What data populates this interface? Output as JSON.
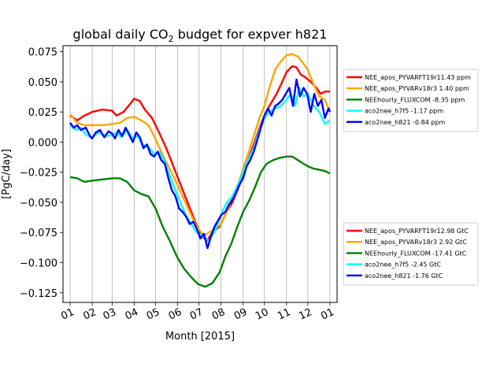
{
  "chart_data": {
    "type": "line",
    "title_prefix": "global daily CO",
    "title_sub": "2",
    "title_suffix": " budget for expver h821",
    "xlabel": "Month [2015]",
    "ylabel": "[PgC/day]",
    "ylim": [
      -0.133,
      0.08
    ],
    "xlim": [
      -10,
      375
    ],
    "grid": "vertical",
    "x_ticks": [
      {
        "day": 0,
        "label": "01"
      },
      {
        "day": 31,
        "label": "02"
      },
      {
        "day": 59,
        "label": "03"
      },
      {
        "day": 90,
        "label": "04"
      },
      {
        "day": 120,
        "label": "05"
      },
      {
        "day": 151,
        "label": "06"
      },
      {
        "day": 181,
        "label": "07"
      },
      {
        "day": 212,
        "label": "08"
      },
      {
        "day": 243,
        "label": "09"
      },
      {
        "day": 273,
        "label": "10"
      },
      {
        "day": 304,
        "label": "11"
      },
      {
        "day": 334,
        "label": "12"
      },
      {
        "day": 365,
        "label": "01"
      }
    ],
    "y_ticks": [
      {
        "value": 0.075,
        "label": "0.075"
      },
      {
        "value": 0.05,
        "label": "0.050"
      },
      {
        "value": 0.025,
        "label": "0.025"
      },
      {
        "value": 0.0,
        "label": "0.000"
      },
      {
        "value": -0.025,
        "label": "−0.025"
      },
      {
        "value": -0.05,
        "label": "−0.050"
      },
      {
        "value": -0.075,
        "label": "−0.075"
      },
      {
        "value": -0.1,
        "label": "−0.100"
      },
      {
        "value": -0.125,
        "label": "−0.125"
      }
    ],
    "series": [
      {
        "key": "nee_pyvarft",
        "color": "#ff0000",
        "points": [
          [
            0,
            0.022
          ],
          [
            10,
            0.018
          ],
          [
            20,
            0.022
          ],
          [
            31,
            0.025
          ],
          [
            45,
            0.027
          ],
          [
            59,
            0.026
          ],
          [
            65,
            0.022
          ],
          [
            75,
            0.025
          ],
          [
            82,
            0.03
          ],
          [
            90,
            0.036
          ],
          [
            98,
            0.034
          ],
          [
            105,
            0.027
          ],
          [
            115,
            0.02
          ],
          [
            125,
            0.008
          ],
          [
            135,
            -0.005
          ],
          [
            145,
            -0.02
          ],
          [
            155,
            -0.035
          ],
          [
            165,
            -0.05
          ],
          [
            175,
            -0.065
          ],
          [
            185,
            -0.078
          ],
          [
            192,
            -0.082
          ],
          [
            200,
            -0.075
          ],
          [
            210,
            -0.07
          ],
          [
            220,
            -0.058
          ],
          [
            228,
            -0.05
          ],
          [
            235,
            -0.04
          ],
          [
            243,
            -0.028
          ],
          [
            250,
            -0.015
          ],
          [
            258,
            -0.002
          ],
          [
            265,
            0.01
          ],
          [
            273,
            0.022
          ],
          [
            280,
            0.03
          ],
          [
            290,
            0.04
          ],
          [
            298,
            0.05
          ],
          [
            304,
            0.058
          ],
          [
            312,
            0.063
          ],
          [
            318,
            0.062
          ],
          [
            324,
            0.056
          ],
          [
            330,
            0.054
          ],
          [
            338,
            0.05
          ],
          [
            346,
            0.045
          ],
          [
            352,
            0.04
          ],
          [
            358,
            0.042
          ],
          [
            365,
            0.042
          ]
        ]
      },
      {
        "key": "nee_pyvarv18r3",
        "color": "#ffa500",
        "points": [
          [
            0,
            0.023
          ],
          [
            10,
            0.016
          ],
          [
            20,
            0.014
          ],
          [
            31,
            0.014
          ],
          [
            45,
            0.014
          ],
          [
            59,
            0.015
          ],
          [
            70,
            0.016
          ],
          [
            80,
            0.02
          ],
          [
            90,
            0.021
          ],
          [
            100,
            0.018
          ],
          [
            110,
            0.014
          ],
          [
            118,
            0.005
          ],
          [
            128,
            -0.008
          ],
          [
            138,
            -0.02
          ],
          [
            148,
            -0.032
          ],
          [
            158,
            -0.045
          ],
          [
            168,
            -0.058
          ],
          [
            178,
            -0.07
          ],
          [
            188,
            -0.078
          ],
          [
            195,
            -0.075
          ],
          [
            203,
            -0.072
          ],
          [
            212,
            -0.068
          ],
          [
            220,
            -0.058
          ],
          [
            228,
            -0.046
          ],
          [
            236,
            -0.035
          ],
          [
            243,
            -0.022
          ],
          [
            250,
            -0.01
          ],
          [
            258,
            0.005
          ],
          [
            266,
            0.02
          ],
          [
            273,
            0.03
          ],
          [
            280,
            0.045
          ],
          [
            288,
            0.06
          ],
          [
            296,
            0.067
          ],
          [
            304,
            0.072
          ],
          [
            312,
            0.073
          ],
          [
            320,
            0.071
          ],
          [
            328,
            0.065
          ],
          [
            334,
            0.06
          ],
          [
            342,
            0.048
          ],
          [
            350,
            0.038
          ],
          [
            358,
            0.035
          ],
          [
            365,
            0.025
          ]
        ]
      },
      {
        "key": "neehourly_fluxcom",
        "color": "#008000",
        "points": [
          [
            0,
            -0.029
          ],
          [
            10,
            -0.03
          ],
          [
            20,
            -0.033
          ],
          [
            31,
            -0.032
          ],
          [
            45,
            -0.031
          ],
          [
            59,
            -0.03
          ],
          [
            70,
            -0.03
          ],
          [
            80,
            -0.033
          ],
          [
            90,
            -0.04
          ],
          [
            100,
            -0.043
          ],
          [
            110,
            -0.045
          ],
          [
            120,
            -0.055
          ],
          [
            130,
            -0.07
          ],
          [
            140,
            -0.082
          ],
          [
            150,
            -0.095
          ],
          [
            160,
            -0.105
          ],
          [
            170,
            -0.112
          ],
          [
            180,
            -0.118
          ],
          [
            190,
            -0.12
          ],
          [
            200,
            -0.117
          ],
          [
            210,
            -0.108
          ],
          [
            218,
            -0.095
          ],
          [
            226,
            -0.085
          ],
          [
            235,
            -0.07
          ],
          [
            243,
            -0.058
          ],
          [
            252,
            -0.048
          ],
          [
            260,
            -0.037
          ],
          [
            268,
            -0.025
          ],
          [
            276,
            -0.018
          ],
          [
            285,
            -0.015
          ],
          [
            295,
            -0.013
          ],
          [
            304,
            -0.012
          ],
          [
            312,
            -0.012
          ],
          [
            320,
            -0.015
          ],
          [
            328,
            -0.018
          ],
          [
            334,
            -0.02
          ],
          [
            342,
            -0.022
          ],
          [
            350,
            -0.023
          ],
          [
            358,
            -0.024
          ],
          [
            365,
            -0.026
          ]
        ]
      },
      {
        "key": "aco2nee_h7f5",
        "color": "#00ffff",
        "points": [
          [
            0,
            0.014
          ],
          [
            8,
            0.01
          ],
          [
            15,
            0.012
          ],
          [
            22,
            0.006
          ],
          [
            31,
            0.004
          ],
          [
            40,
            0.008
          ],
          [
            50,
            0.005
          ],
          [
            59,
            0.006
          ],
          [
            66,
            0.008
          ],
          [
            72,
            0.004
          ],
          [
            80,
            0.01
          ],
          [
            88,
            0.003
          ],
          [
            95,
            0.005
          ],
          [
            102,
            -0.002
          ],
          [
            110,
            -0.004
          ],
          [
            118,
            -0.01
          ],
          [
            125,
            -0.008
          ],
          [
            132,
            -0.015
          ],
          [
            140,
            -0.028
          ],
          [
            148,
            -0.04
          ],
          [
            155,
            -0.05
          ],
          [
            162,
            -0.06
          ],
          [
            170,
            -0.068
          ],
          [
            178,
            -0.075
          ],
          [
            186,
            -0.078
          ],
          [
            195,
            -0.082
          ],
          [
            205,
            -0.072
          ],
          [
            212,
            -0.06
          ],
          [
            220,
            -0.05
          ],
          [
            228,
            -0.045
          ],
          [
            236,
            -0.035
          ],
          [
            243,
            -0.025
          ],
          [
            250,
            -0.015
          ],
          [
            258,
            -0.005
          ],
          [
            266,
            0.01
          ],
          [
            273,
            0.02
          ],
          [
            280,
            0.025
          ],
          [
            288,
            0.028
          ],
          [
            296,
            0.03
          ],
          [
            304,
            0.035
          ],
          [
            310,
            0.04
          ],
          [
            316,
            0.03
          ],
          [
            322,
            0.045
          ],
          [
            328,
            0.038
          ],
          [
            334,
            0.04
          ],
          [
            342,
            0.03
          ],
          [
            350,
            0.025
          ],
          [
            358,
            0.015
          ],
          [
            365,
            0.018
          ]
        ]
      },
      {
        "key": "aco2nee_h821",
        "color": "#0000ff",
        "points": [
          [
            0,
            0.016
          ],
          [
            5,
            0.012
          ],
          [
            10,
            0.014
          ],
          [
            15,
            0.01
          ],
          [
            22,
            0.012
          ],
          [
            28,
            0.005
          ],
          [
            31,
            0.003
          ],
          [
            36,
            0.008
          ],
          [
            42,
            0.01
          ],
          [
            48,
            0.004
          ],
          [
            54,
            0.009
          ],
          [
            59,
            0.007
          ],
          [
            63,
            0.003
          ],
          [
            68,
            0.01
          ],
          [
            73,
            0.005
          ],
          [
            78,
            0.012
          ],
          [
            83,
            0.006
          ],
          [
            88,
            0.0
          ],
          [
            93,
            0.008
          ],
          [
            98,
            0.004
          ],
          [
            103,
            -0.005
          ],
          [
            108,
            -0.002
          ],
          [
            113,
            -0.01
          ],
          [
            118,
            -0.012
          ],
          [
            123,
            -0.008
          ],
          [
            128,
            -0.015
          ],
          [
            133,
            -0.018
          ],
          [
            138,
            -0.03
          ],
          [
            143,
            -0.04
          ],
          [
            148,
            -0.045
          ],
          [
            153,
            -0.055
          ],
          [
            158,
            -0.058
          ],
          [
            163,
            -0.062
          ],
          [
            168,
            -0.068
          ],
          [
            173,
            -0.066
          ],
          [
            178,
            -0.072
          ],
          [
            183,
            -0.08
          ],
          [
            188,
            -0.076
          ],
          [
            193,
            -0.088
          ],
          [
            198,
            -0.078
          ],
          [
            203,
            -0.07
          ],
          [
            208,
            -0.065
          ],
          [
            213,
            -0.06
          ],
          [
            218,
            -0.058
          ],
          [
            223,
            -0.052
          ],
          [
            228,
            -0.048
          ],
          [
            233,
            -0.042
          ],
          [
            238,
            -0.035
          ],
          [
            243,
            -0.03
          ],
          [
            248,
            -0.02
          ],
          [
            253,
            -0.015
          ],
          [
            258,
            -0.008
          ],
          [
            263,
            0.002
          ],
          [
            268,
            0.012
          ],
          [
            273,
            0.022
          ],
          [
            278,
            0.028
          ],
          [
            283,
            0.022
          ],
          [
            288,
            0.03
          ],
          [
            293,
            0.032
          ],
          [
            298,
            0.035
          ],
          [
            303,
            0.04
          ],
          [
            308,
            0.045
          ],
          [
            313,
            0.03
          ],
          [
            318,
            0.052
          ],
          [
            323,
            0.038
          ],
          [
            328,
            0.045
          ],
          [
            333,
            0.04
          ],
          [
            338,
            0.025
          ],
          [
            343,
            0.04
          ],
          [
            348,
            0.03
          ],
          [
            353,
            0.035
          ],
          [
            358,
            0.02
          ],
          [
            363,
            0.028
          ],
          [
            365,
            0.025
          ]
        ]
      }
    ],
    "legend_top": [
      {
        "name": "NEE_apos_PYVARFT19r11.43 ppm",
        "color": "#ff0000"
      },
      {
        "name": "NEE_apos_PYVARv18r3 1.40 ppm",
        "color": "#ffa500"
      },
      {
        "name": "NEEhourly_FLUXCOM   -8.35 ppm",
        "color": "#008000"
      },
      {
        "name": "aco2nee_h7f5        -1.17 ppm",
        "color": "#00ffff"
      },
      {
        "name": "aco2nee_h821        -0.84 ppm",
        "color": "#0000ff"
      }
    ],
    "legend_bottom": [
      {
        "name": "NEE_apos_PYVARFT19r12.98 GtC",
        "color": "#ff0000"
      },
      {
        "name": "NEE_apos_PYVARv18r3 2.92 GtC",
        "color": "#ffa500"
      },
      {
        "name": "NEEhourly_FLUXCOM   -17.41 GtC",
        "color": "#008000"
      },
      {
        "name": "aco2nee_h7f5        -2.45 GtC",
        "color": "#00ffff"
      },
      {
        "name": "aco2nee_h821        -1.76 GtC",
        "color": "#0000ff"
      }
    ],
    "legend_placement": "right"
  }
}
